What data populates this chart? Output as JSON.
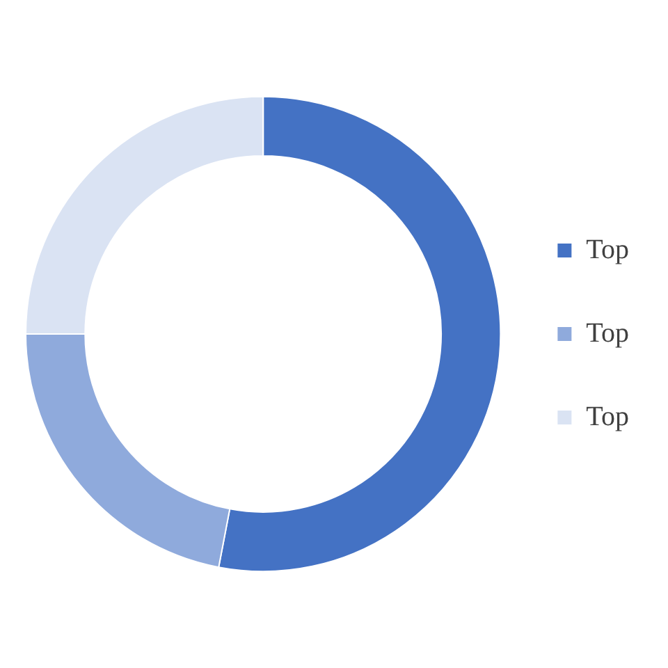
{
  "chart_data": {
    "type": "donut",
    "categories": [
      "Top",
      "Top",
      "Top"
    ],
    "values": [
      53,
      22,
      25
    ],
    "colors": [
      "#4472c4",
      "#8faadc",
      "#dae3f3"
    ],
    "legend": "right"
  }
}
